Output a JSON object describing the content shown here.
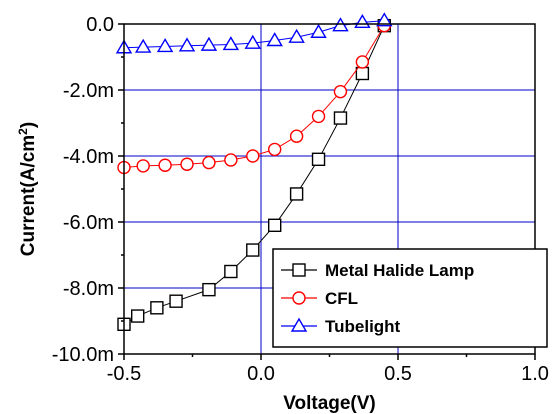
{
  "chart_data": {
    "type": "line",
    "title": "",
    "xlabel": "Voltage(V)",
    "ylabel": "Current(A/cm",
    "ylabel_sup": "2",
    "ylabel_end": ")",
    "xlim": [
      -0.5,
      1.0
    ],
    "ylim": [
      -10.0,
      0.0
    ],
    "x_ticks": [
      {
        "value": -0.5,
        "label": "-0.5"
      },
      {
        "value": 0.0,
        "label": "0.0"
      },
      {
        "value": 0.5,
        "label": "0.5"
      },
      {
        "value": 1.0,
        "label": "1.0"
      }
    ],
    "y_ticks": [
      {
        "value": 0.0,
        "label": "0.0"
      },
      {
        "value": -2.0,
        "label": "-2.0m"
      },
      {
        "value": -4.0,
        "label": "-4.0m"
      },
      {
        "value": -6.0,
        "label": "-6.0m"
      },
      {
        "value": -8.0,
        "label": "-8.0m"
      },
      {
        "value": -10.0,
        "label": "-10.0m"
      }
    ],
    "grid": true,
    "grid_color": "#0000c8",
    "legend_position": "bottom-right",
    "series": [
      {
        "name": "Metal Halide Lamp",
        "color": "#000000",
        "marker": "square",
        "x": [
          -0.5,
          -0.45,
          -0.38,
          -0.31,
          -0.19,
          -0.11,
          -0.03,
          0.05,
          0.13,
          0.21,
          0.29,
          0.37,
          0.45
        ],
        "y": [
          -9.1,
          -8.85,
          -8.6,
          -8.4,
          -8.05,
          -7.5,
          -6.85,
          -6.1,
          -5.15,
          -4.1,
          -2.85,
          -1.5,
          -0.05
        ]
      },
      {
        "name": "CFL",
        "color": "#ff0000",
        "marker": "circle",
        "x": [
          -0.5,
          -0.43,
          -0.35,
          -0.27,
          -0.19,
          -0.11,
          -0.03,
          0.05,
          0.13,
          0.21,
          0.29,
          0.37,
          0.45
        ],
        "y": [
          -4.35,
          -4.3,
          -4.28,
          -4.25,
          -4.2,
          -4.12,
          -4.0,
          -3.8,
          -3.4,
          -2.8,
          -2.05,
          -1.15,
          -0.05
        ]
      },
      {
        "name": "Tubelight",
        "color": "#0000ff",
        "marker": "triangle",
        "x": [
          -0.5,
          -0.43,
          -0.35,
          -0.27,
          -0.19,
          -0.11,
          -0.03,
          0.05,
          0.13,
          0.21,
          0.29,
          0.37,
          0.45
        ],
        "y": [
          -0.72,
          -0.7,
          -0.68,
          -0.66,
          -0.64,
          -0.62,
          -0.58,
          -0.5,
          -0.4,
          -0.25,
          -0.05,
          0.05,
          0.1
        ]
      }
    ]
  }
}
